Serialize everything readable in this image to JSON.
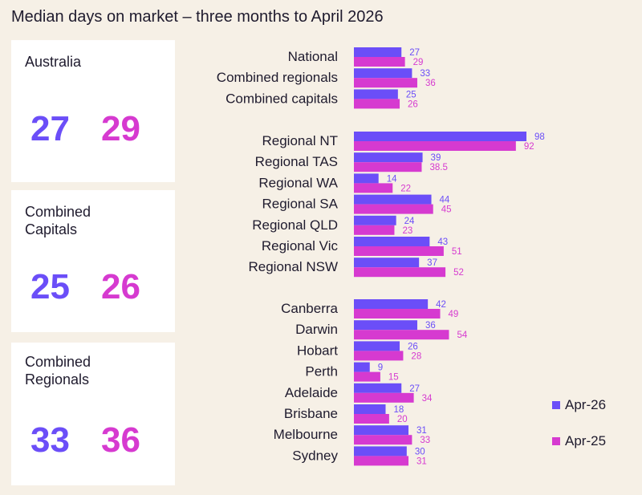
{
  "title": "Median days on market – three months to April 2026",
  "colors": {
    "apr26": "#6b4ef8",
    "apr25": "#d63ad0"
  },
  "cards": [
    {
      "label": "Australia",
      "apr26": "27",
      "apr25": "29"
    },
    {
      "label": "Combined\nCapitals",
      "apr26": "25",
      "apr25": "26"
    },
    {
      "label": "Combined\nRegionals",
      "apr26": "33",
      "apr25": "36"
    }
  ],
  "legend": [
    "Apr-26",
    "Apr-25"
  ],
  "chart_data": {
    "type": "bar",
    "orientation": "horizontal",
    "xlim": [
      0,
      98
    ],
    "grid": false,
    "legend_position": "bottom-right",
    "groups": [
      {
        "categories": [
          "National",
          "Combined regionals",
          "Combined capitals"
        ],
        "series": [
          {
            "name": "Apr-26",
            "values": [
              27,
              33,
              25
            ]
          },
          {
            "name": "Apr-25",
            "values": [
              29,
              36,
              26
            ]
          }
        ]
      },
      {
        "categories": [
          "Regional NT",
          "Regional TAS",
          "Regional WA",
          "Regional SA",
          "Regional QLD",
          "Regional Vic",
          "Regional NSW"
        ],
        "series": [
          {
            "name": "Apr-26",
            "values": [
              98,
              39,
              14,
              44,
              24,
              43,
              37
            ]
          },
          {
            "name": "Apr-25",
            "values": [
              92,
              38.5,
              22,
              45,
              23,
              51,
              52
            ]
          }
        ]
      },
      {
        "categories": [
          "Canberra",
          "Darwin",
          "Hobart",
          "Perth",
          "Adelaide",
          "Brisbane",
          "Melbourne",
          "Sydney"
        ],
        "series": [
          {
            "name": "Apr-26",
            "values": [
              42,
              36,
              26,
              9,
              27,
              18,
              31,
              30
            ]
          },
          {
            "name": "Apr-25",
            "values": [
              49,
              54,
              28,
              15,
              34,
              20,
              33,
              31
            ]
          }
        ]
      }
    ]
  }
}
